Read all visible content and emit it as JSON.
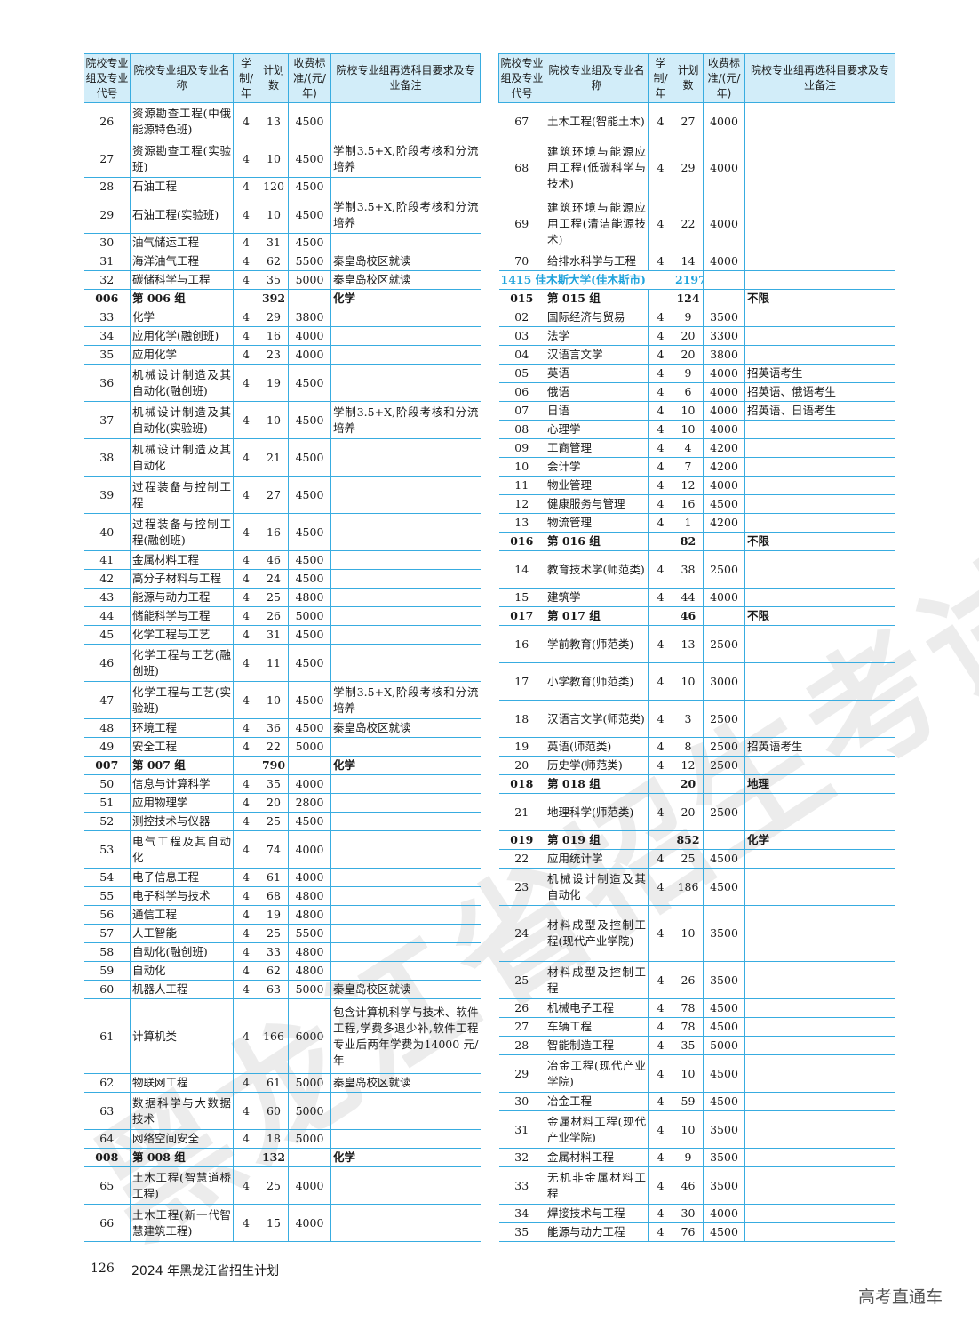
{
  "headers": [
    "院校专业组及专业代号",
    "院校专业组及专业名称",
    "学制/年",
    "计划数",
    "收费标准/(元/年)",
    "院校专业组再选科目要求及专业备注"
  ],
  "left_rows": [
    {
      "type": "major",
      "code": "26",
      "name": "资源勘查工程(中俄能源特色班)",
      "years": "4",
      "plan": "13",
      "fee": "4500",
      "note": ""
    },
    {
      "type": "major",
      "code": "27",
      "name": "资源勘查工程(实验班)",
      "years": "4",
      "plan": "10",
      "fee": "4500",
      "note": "学制3.5+X,阶段考核和分流培养"
    },
    {
      "type": "major",
      "code": "28",
      "name": "石油工程",
      "years": "4",
      "plan": "120",
      "fee": "4500",
      "note": ""
    },
    {
      "type": "major",
      "code": "29",
      "name": "石油工程(实验班)",
      "years": "4",
      "plan": "10",
      "fee": "4500",
      "note": "学制3.5+X,阶段考核和分流培养"
    },
    {
      "type": "major",
      "code": "30",
      "name": "油气储运工程",
      "years": "4",
      "plan": "31",
      "fee": "4500",
      "note": ""
    },
    {
      "type": "major",
      "code": "31",
      "name": "海洋油气工程",
      "years": "4",
      "plan": "62",
      "fee": "5500",
      "note": "秦皇岛校区就读"
    },
    {
      "type": "major",
      "code": "32",
      "name": "碳储科学与工程",
      "years": "4",
      "plan": "35",
      "fee": "5000",
      "note": "秦皇岛校区就读"
    },
    {
      "type": "group",
      "code": "006",
      "name": "第 006 组",
      "years": "",
      "plan": "392",
      "fee": "",
      "note": "化学"
    },
    {
      "type": "major",
      "code": "33",
      "name": "化学",
      "years": "4",
      "plan": "29",
      "fee": "3800",
      "note": ""
    },
    {
      "type": "major",
      "code": "34",
      "name": "应用化学(融创班)",
      "years": "4",
      "plan": "16",
      "fee": "4000",
      "note": ""
    },
    {
      "type": "major",
      "code": "35",
      "name": "应用化学",
      "years": "4",
      "plan": "23",
      "fee": "4000",
      "note": ""
    },
    {
      "type": "major",
      "code": "36",
      "name": "机械设计制造及其自动化(融创班)",
      "years": "4",
      "plan": "19",
      "fee": "4500",
      "note": ""
    },
    {
      "type": "major",
      "code": "37",
      "name": "机械设计制造及其自动化(实验班)",
      "years": "4",
      "plan": "10",
      "fee": "4500",
      "note": "学制3.5+X,阶段考核和分流培养"
    },
    {
      "type": "major",
      "code": "38",
      "name": "机械设计制造及其自动化",
      "years": "4",
      "plan": "21",
      "fee": "4500",
      "note": ""
    },
    {
      "type": "major",
      "code": "39",
      "name": "过程装备与控制工程",
      "years": "4",
      "plan": "27",
      "fee": "4500",
      "note": ""
    },
    {
      "type": "major",
      "code": "40",
      "name": "过程装备与控制工程(融创班)",
      "years": "4",
      "plan": "16",
      "fee": "4500",
      "note": ""
    },
    {
      "type": "major",
      "code": "41",
      "name": "金属材料工程",
      "years": "4",
      "plan": "46",
      "fee": "4500",
      "note": ""
    },
    {
      "type": "major",
      "code": "42",
      "name": "高分子材料与工程",
      "years": "4",
      "plan": "24",
      "fee": "4500",
      "note": ""
    },
    {
      "type": "major",
      "code": "43",
      "name": "能源与动力工程",
      "years": "4",
      "plan": "25",
      "fee": "4800",
      "note": ""
    },
    {
      "type": "major",
      "code": "44",
      "name": "储能科学与工程",
      "years": "4",
      "plan": "26",
      "fee": "5000",
      "note": ""
    },
    {
      "type": "major",
      "code": "45",
      "name": "化学工程与工艺",
      "years": "4",
      "plan": "31",
      "fee": "4500",
      "note": ""
    },
    {
      "type": "major",
      "code": "46",
      "name": "化学工程与工艺(融创班)",
      "years": "4",
      "plan": "11",
      "fee": "4500",
      "note": ""
    },
    {
      "type": "major",
      "code": "47",
      "name": "化学工程与工艺(实验班)",
      "years": "4",
      "plan": "10",
      "fee": "4500",
      "note": "学制3.5+X,阶段考核和分流培养"
    },
    {
      "type": "major",
      "code": "48",
      "name": "环境工程",
      "years": "4",
      "plan": "36",
      "fee": "4500",
      "note": "秦皇岛校区就读"
    },
    {
      "type": "major",
      "code": "49",
      "name": "安全工程",
      "years": "4",
      "plan": "22",
      "fee": "5000",
      "note": ""
    },
    {
      "type": "group",
      "code": "007",
      "name": "第 007 组",
      "years": "",
      "plan": "790",
      "fee": "",
      "note": "化学"
    },
    {
      "type": "major",
      "code": "50",
      "name": "信息与计算科学",
      "years": "4",
      "plan": "35",
      "fee": "4000",
      "note": ""
    },
    {
      "type": "major",
      "code": "51",
      "name": "应用物理学",
      "years": "4",
      "plan": "20",
      "fee": "2800",
      "note": ""
    },
    {
      "type": "major",
      "code": "52",
      "name": "测控技术与仪器",
      "years": "4",
      "plan": "25",
      "fee": "4500",
      "note": ""
    },
    {
      "type": "major",
      "code": "53",
      "name": "电气工程及其自动化",
      "years": "4",
      "plan": "74",
      "fee": "4000",
      "note": ""
    },
    {
      "type": "major",
      "code": "54",
      "name": "电子信息工程",
      "years": "4",
      "plan": "61",
      "fee": "4000",
      "note": ""
    },
    {
      "type": "major",
      "code": "55",
      "name": "电子科学与技术",
      "years": "4",
      "plan": "68",
      "fee": "4800",
      "note": ""
    },
    {
      "type": "major",
      "code": "56",
      "name": "通信工程",
      "years": "4",
      "plan": "19",
      "fee": "4800",
      "note": ""
    },
    {
      "type": "major",
      "code": "57",
      "name": "人工智能",
      "years": "4",
      "plan": "25",
      "fee": "5500",
      "note": ""
    },
    {
      "type": "major",
      "code": "58",
      "name": "自动化(融创班)",
      "years": "4",
      "plan": "33",
      "fee": "4800",
      "note": ""
    },
    {
      "type": "major",
      "code": "59",
      "name": "自动化",
      "years": "4",
      "plan": "62",
      "fee": "4800",
      "note": ""
    },
    {
      "type": "major",
      "code": "60",
      "name": "机器人工程",
      "years": "4",
      "plan": "63",
      "fee": "5000",
      "note": "秦皇岛校区就读"
    },
    {
      "type": "major",
      "code": "61",
      "name": "计算机类",
      "years": "4",
      "plan": "166",
      "fee": "6000",
      "note": "包含计算机科学与技术、软件工程,学费多退少补,软件工程专业后两年学费为14000 元/年"
    },
    {
      "type": "major",
      "code": "62",
      "name": "物联网工程",
      "years": "4",
      "plan": "61",
      "fee": "5000",
      "note": "秦皇岛校区就读"
    },
    {
      "type": "major",
      "code": "63",
      "name": "数据科学与大数据技术",
      "years": "4",
      "plan": "60",
      "fee": "5000",
      "note": ""
    },
    {
      "type": "major",
      "code": "64",
      "name": "网络空间安全",
      "years": "4",
      "plan": "18",
      "fee": "5000",
      "note": ""
    },
    {
      "type": "group",
      "code": "008",
      "name": "第 008 组",
      "years": "",
      "plan": "132",
      "fee": "",
      "note": "化学"
    },
    {
      "type": "major",
      "code": "65",
      "name": "土木工程(智慧道桥工程)",
      "years": "4",
      "plan": "25",
      "fee": "4000",
      "note": ""
    },
    {
      "type": "major",
      "code": "66",
      "name": "土木工程(新一代智慧建筑工程)",
      "years": "4",
      "plan": "15",
      "fee": "4000",
      "note": ""
    }
  ],
  "right_rows": [
    {
      "type": "major",
      "code": "67",
      "name": "土木工程(智能土木)",
      "years": "4",
      "plan": "27",
      "fee": "4000",
      "note": ""
    },
    {
      "type": "major",
      "code": "68",
      "name": "建筑环境与能源应用工程(低碳科学与技术)",
      "years": "4",
      "plan": "29",
      "fee": "4000",
      "note": ""
    },
    {
      "type": "major",
      "code": "69",
      "name": "建筑环境与能源应用工程(清洁能源技术)",
      "years": "4",
      "plan": "22",
      "fee": "4000",
      "note": ""
    },
    {
      "type": "major",
      "code": "70",
      "name": "给排水科学与工程",
      "years": "4",
      "plan": "14",
      "fee": "4000",
      "note": ""
    },
    {
      "type": "school",
      "code": "1415 佳木斯大学(佳木斯市)",
      "name": "",
      "years": "",
      "plan": "2197",
      "fee": "",
      "note": ""
    },
    {
      "type": "group",
      "code": "015",
      "name": "第 015 组",
      "years": "",
      "plan": "124",
      "fee": "",
      "note": "不限"
    },
    {
      "type": "major",
      "code": "02",
      "name": "国际经济与贸易",
      "years": "4",
      "plan": "9",
      "fee": "3500",
      "note": ""
    },
    {
      "type": "major",
      "code": "03",
      "name": "法学",
      "years": "4",
      "plan": "20",
      "fee": "3300",
      "note": ""
    },
    {
      "type": "major",
      "code": "04",
      "name": "汉语言文学",
      "years": "4",
      "plan": "20",
      "fee": "3800",
      "note": ""
    },
    {
      "type": "major",
      "code": "05",
      "name": "英语",
      "years": "4",
      "plan": "9",
      "fee": "4000",
      "note": "招英语考生"
    },
    {
      "type": "major",
      "code": "06",
      "name": "俄语",
      "years": "4",
      "plan": "6",
      "fee": "4000",
      "note": "招英语、俄语考生"
    },
    {
      "type": "major",
      "code": "07",
      "name": "日语",
      "years": "4",
      "plan": "10",
      "fee": "4000",
      "note": "招英语、日语考生"
    },
    {
      "type": "major",
      "code": "08",
      "name": "心理学",
      "years": "4",
      "plan": "10",
      "fee": "4000",
      "note": ""
    },
    {
      "type": "major",
      "code": "09",
      "name": "工商管理",
      "years": "4",
      "plan": "4",
      "fee": "4200",
      "note": ""
    },
    {
      "type": "major",
      "code": "10",
      "name": "会计学",
      "years": "4",
      "plan": "7",
      "fee": "4200",
      "note": ""
    },
    {
      "type": "major",
      "code": "11",
      "name": "物业管理",
      "years": "4",
      "plan": "12",
      "fee": "4000",
      "note": ""
    },
    {
      "type": "major",
      "code": "12",
      "name": "健康服务与管理",
      "years": "4",
      "plan": "16",
      "fee": "4500",
      "note": ""
    },
    {
      "type": "major",
      "code": "13",
      "name": "物流管理",
      "years": "4",
      "plan": "1",
      "fee": "4200",
      "note": ""
    },
    {
      "type": "group",
      "code": "016",
      "name": "第 016 组",
      "years": "",
      "plan": "82",
      "fee": "",
      "note": "不限"
    },
    {
      "type": "major",
      "code": "14",
      "name": "教育技术学(师范类)",
      "years": "4",
      "plan": "38",
      "fee": "2500",
      "note": ""
    },
    {
      "type": "major",
      "code": "15",
      "name": "建筑学",
      "years": "4",
      "plan": "44",
      "fee": "4000",
      "note": ""
    },
    {
      "type": "group",
      "code": "017",
      "name": "第 017 组",
      "years": "",
      "plan": "46",
      "fee": "",
      "note": "不限"
    },
    {
      "type": "major",
      "code": "16",
      "name": "学前教育(师范类)",
      "years": "4",
      "plan": "13",
      "fee": "2500",
      "note": ""
    },
    {
      "type": "major",
      "code": "17",
      "name": "小学教育(师范类)",
      "years": "4",
      "plan": "10",
      "fee": "3000",
      "note": ""
    },
    {
      "type": "major",
      "code": "18",
      "name": "汉语言文学(师范类)",
      "years": "4",
      "plan": "3",
      "fee": "2500",
      "note": ""
    },
    {
      "type": "major",
      "code": "19",
      "name": "英语(师范类)",
      "years": "4",
      "plan": "8",
      "fee": "2500",
      "note": "招英语考生"
    },
    {
      "type": "major",
      "code": "20",
      "name": "历史学(师范类)",
      "years": "4",
      "plan": "12",
      "fee": "2500",
      "note": ""
    },
    {
      "type": "group",
      "code": "018",
      "name": "第 018 组",
      "years": "",
      "plan": "20",
      "fee": "",
      "note": "地理"
    },
    {
      "type": "major",
      "code": "21",
      "name": "地理科学(师范类)",
      "years": "4",
      "plan": "20",
      "fee": "2500",
      "note": ""
    },
    {
      "type": "group",
      "code": "019",
      "name": "第 019 组",
      "years": "",
      "plan": "852",
      "fee": "",
      "note": "化学"
    },
    {
      "type": "major",
      "code": "22",
      "name": "应用统计学",
      "years": "4",
      "plan": "25",
      "fee": "4500",
      "note": ""
    },
    {
      "type": "major",
      "code": "23",
      "name": "机械设计制造及其自动化",
      "years": "4",
      "plan": "186",
      "fee": "4500",
      "note": ""
    },
    {
      "type": "major",
      "code": "24",
      "name": "材料成型及控制工程(现代产业学院)",
      "years": "4",
      "plan": "10",
      "fee": "3500",
      "note": ""
    },
    {
      "type": "major",
      "code": "25",
      "name": "材料成型及控制工程",
      "years": "4",
      "plan": "26",
      "fee": "3500",
      "note": ""
    },
    {
      "type": "major",
      "code": "26",
      "name": "机械电子工程",
      "years": "4",
      "plan": "78",
      "fee": "4500",
      "note": ""
    },
    {
      "type": "major",
      "code": "27",
      "name": "车辆工程",
      "years": "4",
      "plan": "78",
      "fee": "4500",
      "note": ""
    },
    {
      "type": "major",
      "code": "28",
      "name": "智能制造工程",
      "years": "4",
      "plan": "35",
      "fee": "5000",
      "note": ""
    },
    {
      "type": "major",
      "code": "29",
      "name": "冶金工程(现代产业学院)",
      "years": "4",
      "plan": "10",
      "fee": "4500",
      "note": ""
    },
    {
      "type": "major",
      "code": "30",
      "name": "冶金工程",
      "years": "4",
      "plan": "59",
      "fee": "4500",
      "note": ""
    },
    {
      "type": "major",
      "code": "31",
      "name": "金属材料工程(现代产业学院)",
      "years": "4",
      "plan": "10",
      "fee": "3500",
      "note": ""
    },
    {
      "type": "major",
      "code": "32",
      "name": "金属材料工程",
      "years": "4",
      "plan": "9",
      "fee": "3500",
      "note": ""
    },
    {
      "type": "major",
      "code": "33",
      "name": "无机非金属材料工程",
      "years": "4",
      "plan": "46",
      "fee": "3500",
      "note": ""
    },
    {
      "type": "major",
      "code": "34",
      "name": "焊接技术与工程",
      "years": "4",
      "plan": "30",
      "fee": "4000",
      "note": ""
    },
    {
      "type": "major",
      "code": "35",
      "name": "能源与动力工程",
      "years": "4",
      "plan": "76",
      "fee": "4500",
      "note": ""
    }
  ],
  "footer": {
    "page_number": "126",
    "book_title": "2024 年黑龙江省招生计划"
  },
  "watermark": "黑龙江省招生考试院",
  "brand": "高考直通车",
  "colors": {
    "rule": "#38ace0",
    "header_bg": "#d2edf9",
    "school_text": "#1ea3dc"
  }
}
